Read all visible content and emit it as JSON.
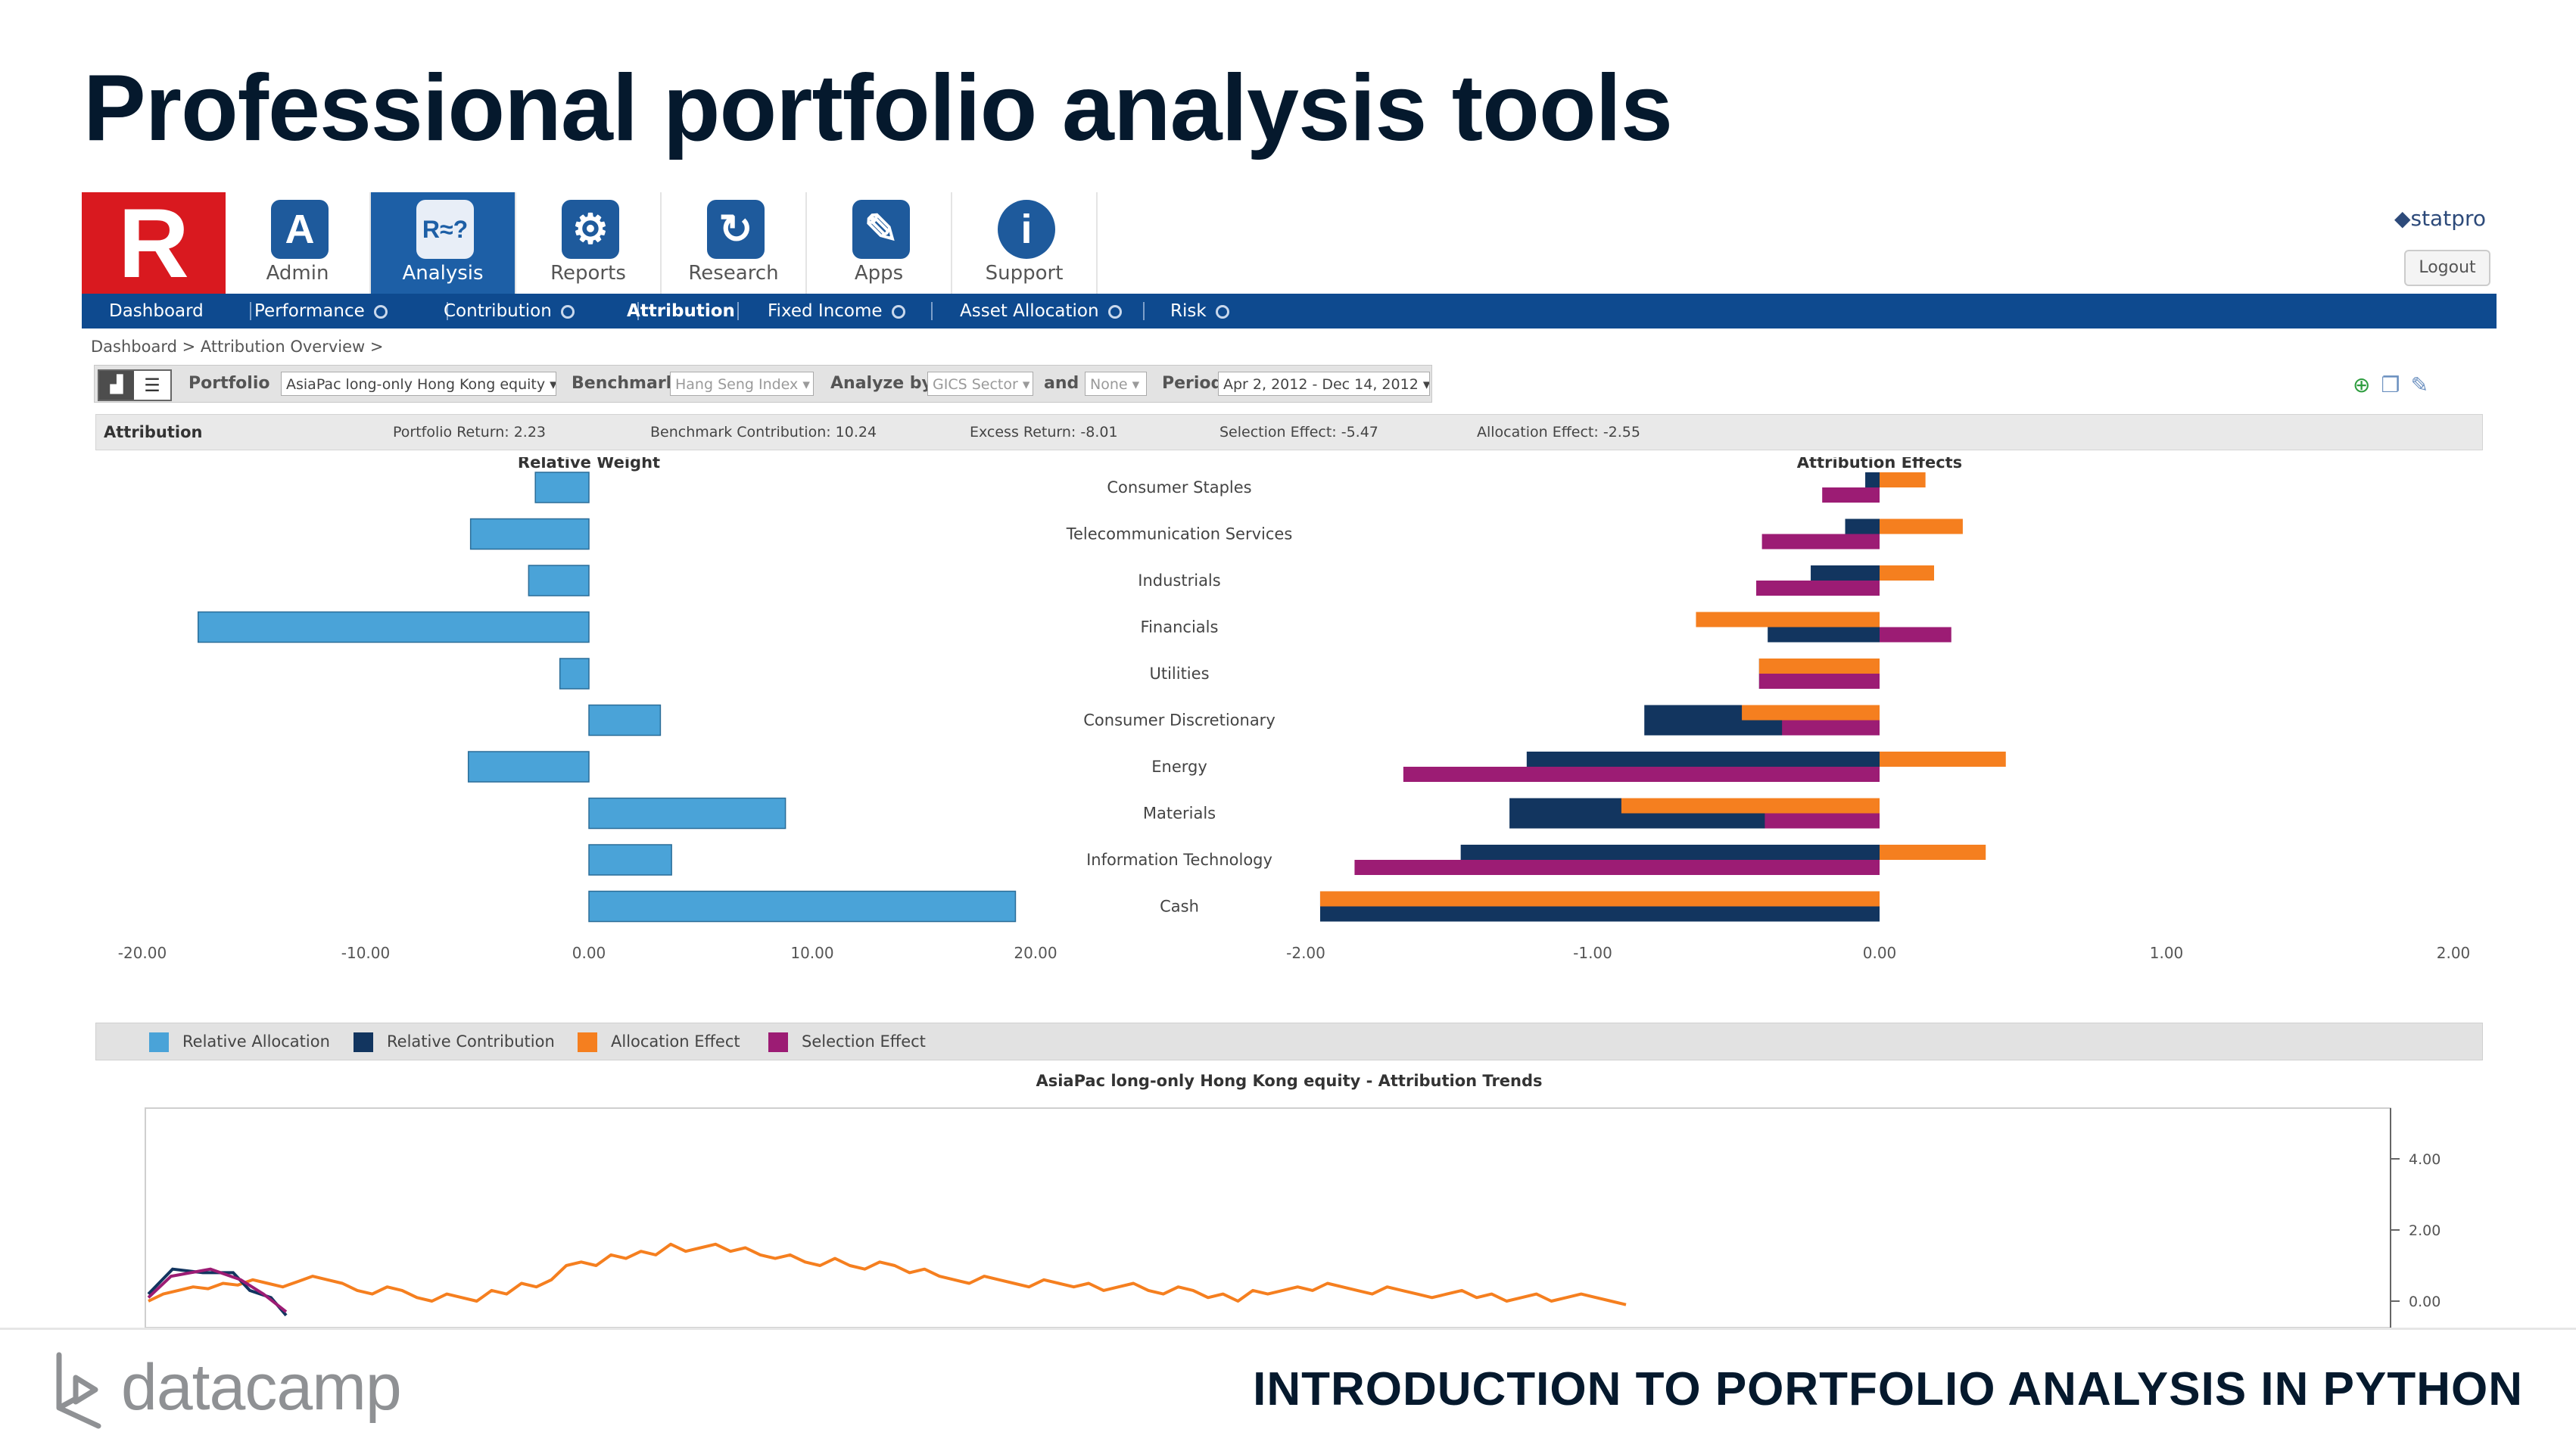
{
  "slide": {
    "title": "Professional portfolio analysis tools",
    "brand": "datacamp",
    "course": "INTRODUCTION TO PORTFOLIO ANALYSIS IN PYTHON"
  },
  "app": {
    "logo_letter": "R",
    "vendor": "statpro",
    "logout_label": "Logout",
    "tools": [
      {
        "label": "Admin",
        "icon": "admin-icon",
        "glyph": "A"
      },
      {
        "label": "Analysis",
        "icon": "analysis-icon",
        "glyph": "R≈?"
      },
      {
        "label": "Reports",
        "icon": "reports-icon",
        "glyph": "⚙"
      },
      {
        "label": "Research",
        "icon": "research-icon",
        "glyph": "↻"
      },
      {
        "label": "Apps",
        "icon": "apps-icon",
        "glyph": "✎"
      },
      {
        "label": "Support",
        "icon": "support-icon",
        "glyph": "i"
      }
    ],
    "nav": [
      {
        "label": "Dashboard"
      },
      {
        "label": "Performance"
      },
      {
        "label": "Contribution"
      },
      {
        "label": "Attribution"
      },
      {
        "label": "Fixed Income"
      },
      {
        "label": "Asset Allocation"
      },
      {
        "label": "Risk"
      }
    ],
    "breadcrumb": "Dashboard  > Attribution Overview  >",
    "filters": {
      "portfolio_label": "Portfolio",
      "portfolio_value": "AsiaPac long-only Hong Kong equity",
      "benchmark_label": "Benchmark",
      "benchmark_value": "Hang Seng Index",
      "analyze_label": "Analyze by",
      "analyze_value": "GICS Sector",
      "and_label": "and",
      "and_value": "None",
      "period_label": "Period",
      "period_value": "Apr 2, 2012 - Dec 14, 2012"
    },
    "summary": {
      "title": "Attribution",
      "portfolio_return": "Portfolio Return: 2.23",
      "benchmark_contribution": "Benchmark Contribution: 10.24",
      "excess_return": "Excess Return: -8.01",
      "selection_effect": "Selection Effect: -5.47",
      "allocation_effect": "Allocation Effect: -2.55"
    },
    "legend": [
      {
        "label": "Relative Allocation",
        "color": "#4aa3d8"
      },
      {
        "label": "Relative Contribution",
        "color": "#12355f"
      },
      {
        "label": "Allocation Effect",
        "color": "#f57f1f"
      },
      {
        "label": "Selection Effect",
        "color": "#9c1c74"
      }
    ],
    "trend_title": "AsiaPac long-only Hong Kong equity - Attribution Trends"
  },
  "chart_data": [
    {
      "type": "bar",
      "orientation": "horizontal",
      "title": "Relative Weight",
      "categories": [
        "Consumer Staples",
        "Telecommunication Services",
        "Industrials",
        "Financials",
        "Utilities",
        "Consumer Discretionary",
        "Energy",
        "Materials",
        "Information Technology",
        "Cash"
      ],
      "series": [
        {
          "name": "Relative Allocation",
          "values": [
            -2.4,
            -5.3,
            -2.7,
            -17.5,
            -1.3,
            3.2,
            -5.4,
            8.8,
            3.7,
            19.1
          ]
        }
      ],
      "xlim": [
        -20,
        20
      ],
      "xticks": [
        "-20.00",
        "-10.00",
        "0.00",
        "10.00",
        "20.00"
      ]
    },
    {
      "type": "bar",
      "orientation": "horizontal",
      "title": "Attribution Effects",
      "categories": [
        "Consumer Staples",
        "Telecommunication Services",
        "Industrials",
        "Financials",
        "Utilities",
        "Consumer Discretionary",
        "Energy",
        "Materials",
        "Information Technology",
        "Cash"
      ],
      "series": [
        {
          "name": "Relative Contribution",
          "values": [
            -0.05,
            -0.12,
            -0.24,
            -0.39,
            -0.42,
            -0.82,
            -1.23,
            -1.29,
            -1.46,
            -1.95
          ]
        },
        {
          "name": "Allocation Effect",
          "values": [
            0.16,
            0.29,
            0.19,
            -0.64,
            -0.42,
            -0.48,
            0.44,
            -0.9,
            0.37,
            -1.95
          ]
        },
        {
          "name": "Selection Effect",
          "values": [
            -0.2,
            -0.41,
            -0.43,
            0.25,
            -0.42,
            -0.34,
            -1.66,
            -0.4,
            -1.83,
            0.0
          ]
        }
      ],
      "xlim": [
        -2,
        2
      ],
      "xticks": [
        "-2.00",
        "-1.00",
        "0.00",
        "1.00",
        "2.00"
      ]
    },
    {
      "type": "line",
      "title": "AsiaPac long-only Hong Kong equity - Attribution Trends",
      "yticks": [
        "4.00",
        "2.00",
        "0.00"
      ],
      "ylim": [
        -0.5,
        4.5
      ],
      "x": [
        0,
        1,
        2,
        3,
        4,
        5,
        6,
        7,
        8,
        9,
        10,
        11,
        12,
        13,
        14,
        15,
        16,
        17,
        18,
        19,
        20,
        21,
        22,
        23,
        24,
        25,
        26,
        27,
        28,
        29,
        30,
        31,
        32,
        33,
        34,
        35,
        36,
        37,
        38,
        39,
        40,
        41,
        42,
        43,
        44,
        45,
        46,
        47,
        48,
        49,
        50,
        51,
        52,
        53,
        54,
        55,
        56,
        57,
        58,
        59,
        60,
        61,
        62,
        63,
        64,
        65,
        66,
        67,
        68,
        69,
        70,
        71,
        72,
        73,
        74,
        75,
        76,
        77,
        78,
        79,
        80,
        81,
        82,
        83,
        84,
        85,
        86,
        87,
        88,
        89,
        90,
        91,
        92,
        93,
        94,
        95,
        96,
        97,
        98,
        99
      ],
      "series": [
        {
          "name": "Allocation Effect",
          "values": [
            0.0,
            0.2,
            0.3,
            0.4,
            0.35,
            0.5,
            0.45,
            0.6,
            0.5,
            0.4,
            0.55,
            0.7,
            0.6,
            0.5,
            0.3,
            0.2,
            0.4,
            0.3,
            0.1,
            0.0,
            0.2,
            0.1,
            0.0,
            0.3,
            0.2,
            0.5,
            0.4,
            0.6,
            1.0,
            1.1,
            1.0,
            1.3,
            1.2,
            1.4,
            1.3,
            1.6,
            1.4,
            1.5,
            1.6,
            1.4,
            1.5,
            1.3,
            1.2,
            1.3,
            1.1,
            1.0,
            1.2,
            1.0,
            0.9,
            1.1,
            1.0,
            0.8,
            0.9,
            0.7,
            0.6,
            0.5,
            0.7,
            0.6,
            0.5,
            0.4,
            0.6,
            0.5,
            0.4,
            0.5,
            0.3,
            0.4,
            0.5,
            0.3,
            0.2,
            0.4,
            0.3,
            0.1,
            0.2,
            0.0,
            0.3,
            0.2,
            0.3,
            0.4,
            0.3,
            0.5,
            0.4,
            0.3,
            0.2,
            0.4,
            0.3,
            0.2,
            0.1,
            0.2,
            0.3,
            0.1,
            0.2,
            0.0,
            0.1,
            0.2,
            0.0,
            0.1,
            0.2,
            0.1,
            0.0,
            -0.1
          ]
        }
      ]
    }
  ]
}
